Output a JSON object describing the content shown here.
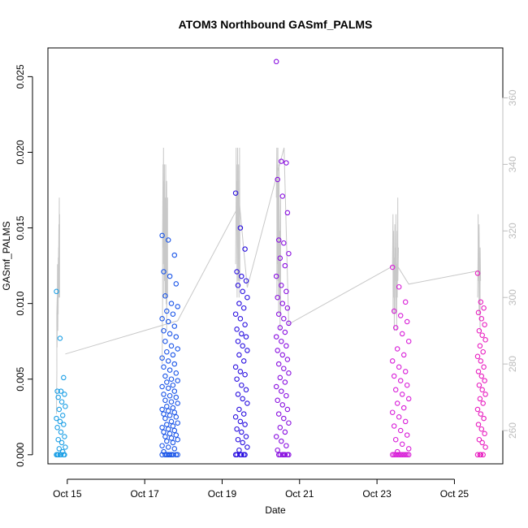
{
  "chart_data": {
    "type": "scatter",
    "title": "ATOM3 Northbound GASmf_PALMS",
    "xlabel": "Date",
    "ylabel": "GASmf_PALMS",
    "xlim": [
      14.5,
      26.25
    ],
    "ylim": [
      -0.0006,
      0.0269
    ],
    "y2lim": [
      250,
      375
    ],
    "x_ticks": [
      {
        "value": 15,
        "label": "Oct 15"
      },
      {
        "value": 17,
        "label": "Oct 17"
      },
      {
        "value": 19,
        "label": "Oct 19"
      },
      {
        "value": 21,
        "label": "Oct 21"
      },
      {
        "value": 23,
        "label": "Oct 23"
      },
      {
        "value": 25,
        "label": "Oct 25"
      }
    ],
    "y_ticks": [
      {
        "value": 0.0,
        "label": "0.000"
      },
      {
        "value": 0.005,
        "label": "0.005"
      },
      {
        "value": 0.01,
        "label": "0.010"
      },
      {
        "value": 0.015,
        "label": "0.015"
      },
      {
        "value": 0.02,
        "label": "0.020"
      },
      {
        "value": 0.025,
        "label": "0.025"
      }
    ],
    "y2_ticks": [
      {
        "value": 260,
        "label": "260"
      },
      {
        "value": 280,
        "label": "280"
      },
      {
        "value": 300,
        "label": "300"
      },
      {
        "value": 320,
        "label": "320"
      },
      {
        "value": 340,
        "label": "340"
      },
      {
        "value": 360,
        "label": "360"
      }
    ],
    "flights": [
      {
        "x_start": 14.72,
        "x_end": 14.95,
        "color": "#1ea0e6",
        "y_values": [
          0.0108,
          0.0077,
          0.0051,
          0.0042,
          0.0042,
          0.004,
          0.0038,
          0.0035,
          0.0032,
          0.003,
          0.0026,
          0.0024,
          0.0022,
          0.002,
          0.0018,
          0.0015,
          0.0012,
          0.001,
          0.0008,
          0.0005,
          0.0004,
          0.0002,
          0.0,
          0.0,
          0.0,
          0.0,
          0.0,
          0.0,
          0.0
        ],
        "alt": [
          265,
          278,
          295,
          300,
          285,
          310,
          300,
          305,
          290,
          312,
          295,
          315,
          305,
          322,
          300,
          330,
          310,
          325,
          300
        ]
      },
      {
        "x_start": 17.45,
        "x_end": 17.85,
        "color": "#1a55e8",
        "y_values": [
          0.0145,
          0.0142,
          0.0132,
          0.0121,
          0.0118,
          0.0113,
          0.0105,
          0.01,
          0.0098,
          0.0095,
          0.0093,
          0.009,
          0.0088,
          0.0085,
          0.0082,
          0.008,
          0.0078,
          0.0075,
          0.0072,
          0.007,
          0.0068,
          0.0066,
          0.0064,
          0.0062,
          0.006,
          0.0058,
          0.0056,
          0.0054,
          0.0052,
          0.005,
          0.0049,
          0.0048,
          0.0046,
          0.0045,
          0.0044,
          0.0042,
          0.004,
          0.0039,
          0.0038,
          0.0036,
          0.0035,
          0.0034,
          0.0032,
          0.0031,
          0.003,
          0.0029,
          0.0028,
          0.0027,
          0.0026,
          0.0025,
          0.0024,
          0.0022,
          0.0021,
          0.002,
          0.0019,
          0.0018,
          0.0017,
          0.0016,
          0.0015,
          0.0014,
          0.0013,
          0.0012,
          0.0011,
          0.001,
          0.0009,
          0.0008,
          0.0006,
          0.0005,
          0.0004,
          0.0002,
          0.0,
          0.0,
          0.0,
          0.0,
          0.0,
          0.0,
          0.0,
          0.0,
          0.0
        ],
        "alt": [
          280,
          300,
          320,
          340,
          315,
          345,
          310,
          335,
          300,
          325,
          340,
          305,
          320,
          330,
          300,
          315,
          340,
          298,
          312,
          335,
          290,
          320,
          305,
          330,
          300
        ]
      },
      {
        "x_start": 19.35,
        "x_end": 19.65,
        "color": "#2a10e0",
        "y_values": [
          0.0173,
          0.015,
          0.0136,
          0.0121,
          0.0118,
          0.0115,
          0.0112,
          0.0108,
          0.0104,
          0.01,
          0.0097,
          0.0093,
          0.009,
          0.0086,
          0.0083,
          0.008,
          0.0078,
          0.0075,
          0.0072,
          0.0069,
          0.0066,
          0.0062,
          0.0058,
          0.0055,
          0.0053,
          0.005,
          0.0046,
          0.0043,
          0.004,
          0.0037,
          0.0034,
          0.003,
          0.0027,
          0.0025,
          0.0022,
          0.002,
          0.0017,
          0.0015,
          0.0012,
          0.001,
          0.0008,
          0.0005,
          0.0003,
          0.0,
          0.0,
          0.0,
          0.0,
          0.0,
          0.0
        ],
        "alt": [
          310,
          330,
          345,
          320,
          340,
          300,
          335,
          315,
          345,
          305,
          330,
          310,
          340,
          300,
          325,
          315,
          345,
          305
        ]
      },
      {
        "x_start": 20.4,
        "x_end": 20.72,
        "color": "#8a10e0",
        "y_values": [
          0.026,
          0.0194,
          0.0193,
          0.0182,
          0.0171,
          0.016,
          0.0142,
          0.014,
          0.0133,
          0.013,
          0.0125,
          0.0118,
          0.0112,
          0.0108,
          0.0104,
          0.01,
          0.0097,
          0.0093,
          0.009,
          0.0087,
          0.0084,
          0.0081,
          0.0078,
          0.0075,
          0.0072,
          0.0069,
          0.0066,
          0.0063,
          0.006,
          0.0057,
          0.0054,
          0.0051,
          0.0048,
          0.0045,
          0.0042,
          0.0039,
          0.0036,
          0.0033,
          0.003,
          0.0027,
          0.0024,
          0.0021,
          0.0018,
          0.0015,
          0.0012,
          0.0009,
          0.0006,
          0.0003,
          0.0,
          0.0,
          0.0,
          0.0,
          0.0,
          0.0,
          0.0
        ],
        "alt": [
          330,
          345,
          300,
          340,
          310,
          345,
          305,
          335,
          295,
          325,
          340,
          300,
          320,
          290,
          315,
          330,
          295
        ]
      },
      {
        "x_start": 23.4,
        "x_end": 23.82,
        "color": "#d81ed8",
        "y_values": [
          0.0124,
          0.0111,
          0.0101,
          0.0095,
          0.0092,
          0.0088,
          0.0084,
          0.008,
          0.0075,
          0.007,
          0.0066,
          0.0062,
          0.0058,
          0.0055,
          0.0052,
          0.0049,
          0.0046,
          0.0043,
          0.004,
          0.0037,
          0.0034,
          0.0031,
          0.0028,
          0.0025,
          0.0022,
          0.0019,
          0.0016,
          0.0013,
          0.001,
          0.0007,
          0.0004,
          0.0002,
          0.0,
          0.0,
          0.0,
          0.0,
          0.0,
          0.0,
          0.0,
          0.0,
          0.0,
          0.0,
          0.0
        ],
        "alt": [
          310,
          325,
          295,
          320,
          300,
          312,
          290,
          322,
          305,
          315,
          295,
          325,
          300,
          310,
          290,
          320,
          300,
          330,
          305,
          315
        ]
      },
      {
        "x_start": 25.6,
        "x_end": 25.8,
        "color": "#e81ec0",
        "y_values": [
          0.012,
          0.0101,
          0.0097,
          0.0094,
          0.009,
          0.0086,
          0.0082,
          0.0079,
          0.0076,
          0.0072,
          0.0068,
          0.0065,
          0.0062,
          0.0058,
          0.0055,
          0.0052,
          0.0049,
          0.0046,
          0.0043,
          0.004,
          0.0037,
          0.0034,
          0.003,
          0.0027,
          0.0024,
          0.002,
          0.0017,
          0.0014,
          0.001,
          0.0008,
          0.0005,
          0.0,
          0.0,
          0.0,
          0.0
        ],
        "alt": [
          300,
          315,
          325,
          305,
          318,
          295,
          322,
          300,
          310,
          290,
          315,
          305
        ]
      }
    ],
    "connector_line": {
      "x": [
        14.95,
        17.85,
        19.45,
        19.65,
        20.6,
        20.72,
        23.5,
        23.82,
        25.62
      ],
      "alt": [
        283,
        293,
        328,
        303,
        345,
        292,
        310,
        304,
        308
      ]
    }
  }
}
